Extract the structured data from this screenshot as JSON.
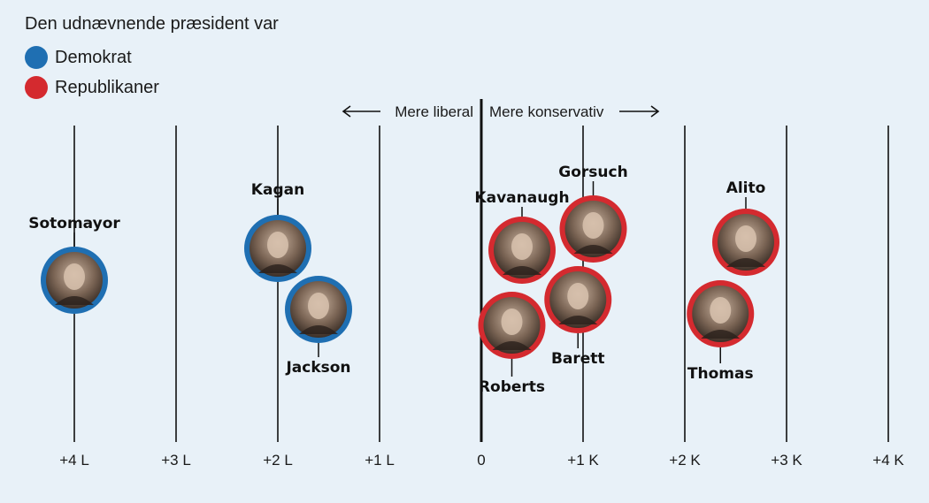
{
  "legend": {
    "title": "Den udnævnende præsident var",
    "items": [
      {
        "label": "Demokrat",
        "color": "#1f6fb2"
      },
      {
        "label": "Republikaner",
        "color": "#d42a2f"
      }
    ]
  },
  "direction": {
    "left": "Mere liberal",
    "right": "Mere konservativ"
  },
  "chart_data": {
    "type": "scatter",
    "xlim": [
      -4.4,
      4.4
    ],
    "ticks": [
      {
        "value": -4,
        "label": "+4 L"
      },
      {
        "value": -3,
        "label": "+3 L"
      },
      {
        "value": -2,
        "label": "+2 L"
      },
      {
        "value": -1,
        "label": "+1 L"
      },
      {
        "value": 0,
        "label": "0"
      },
      {
        "value": 1,
        "label": "+1 K"
      },
      {
        "value": 2,
        "label": "+2 K"
      },
      {
        "value": 3,
        "label": "+3 K"
      },
      {
        "value": 4,
        "label": "+4 K"
      }
    ],
    "justices": [
      {
        "name": "Sotomayor",
        "score": -4.0,
        "party": "Demokrat",
        "label_pos": "top"
      },
      {
        "name": "Kagan",
        "score": -2.0,
        "party": "Demokrat",
        "label_pos": "top"
      },
      {
        "name": "Jackson",
        "score": -1.6,
        "party": "Demokrat",
        "label_pos": "bottom"
      },
      {
        "name": "Kavanaugh",
        "score": 0.4,
        "party": "Republikaner",
        "label_pos": "top"
      },
      {
        "name": "Roberts",
        "score": 0.3,
        "party": "Republikaner",
        "label_pos": "bottom"
      },
      {
        "name": "Gorsuch",
        "score": 1.1,
        "party": "Republikaner",
        "label_pos": "top"
      },
      {
        "name": "Barett",
        "score": 0.95,
        "party": "Republikaner",
        "label_pos": "bottom"
      },
      {
        "name": "Alito",
        "score": 2.6,
        "party": "Republikaner",
        "label_pos": "top"
      },
      {
        "name": "Thomas",
        "score": 2.35,
        "party": "Republikaner",
        "label_pos": "bottom"
      }
    ]
  }
}
